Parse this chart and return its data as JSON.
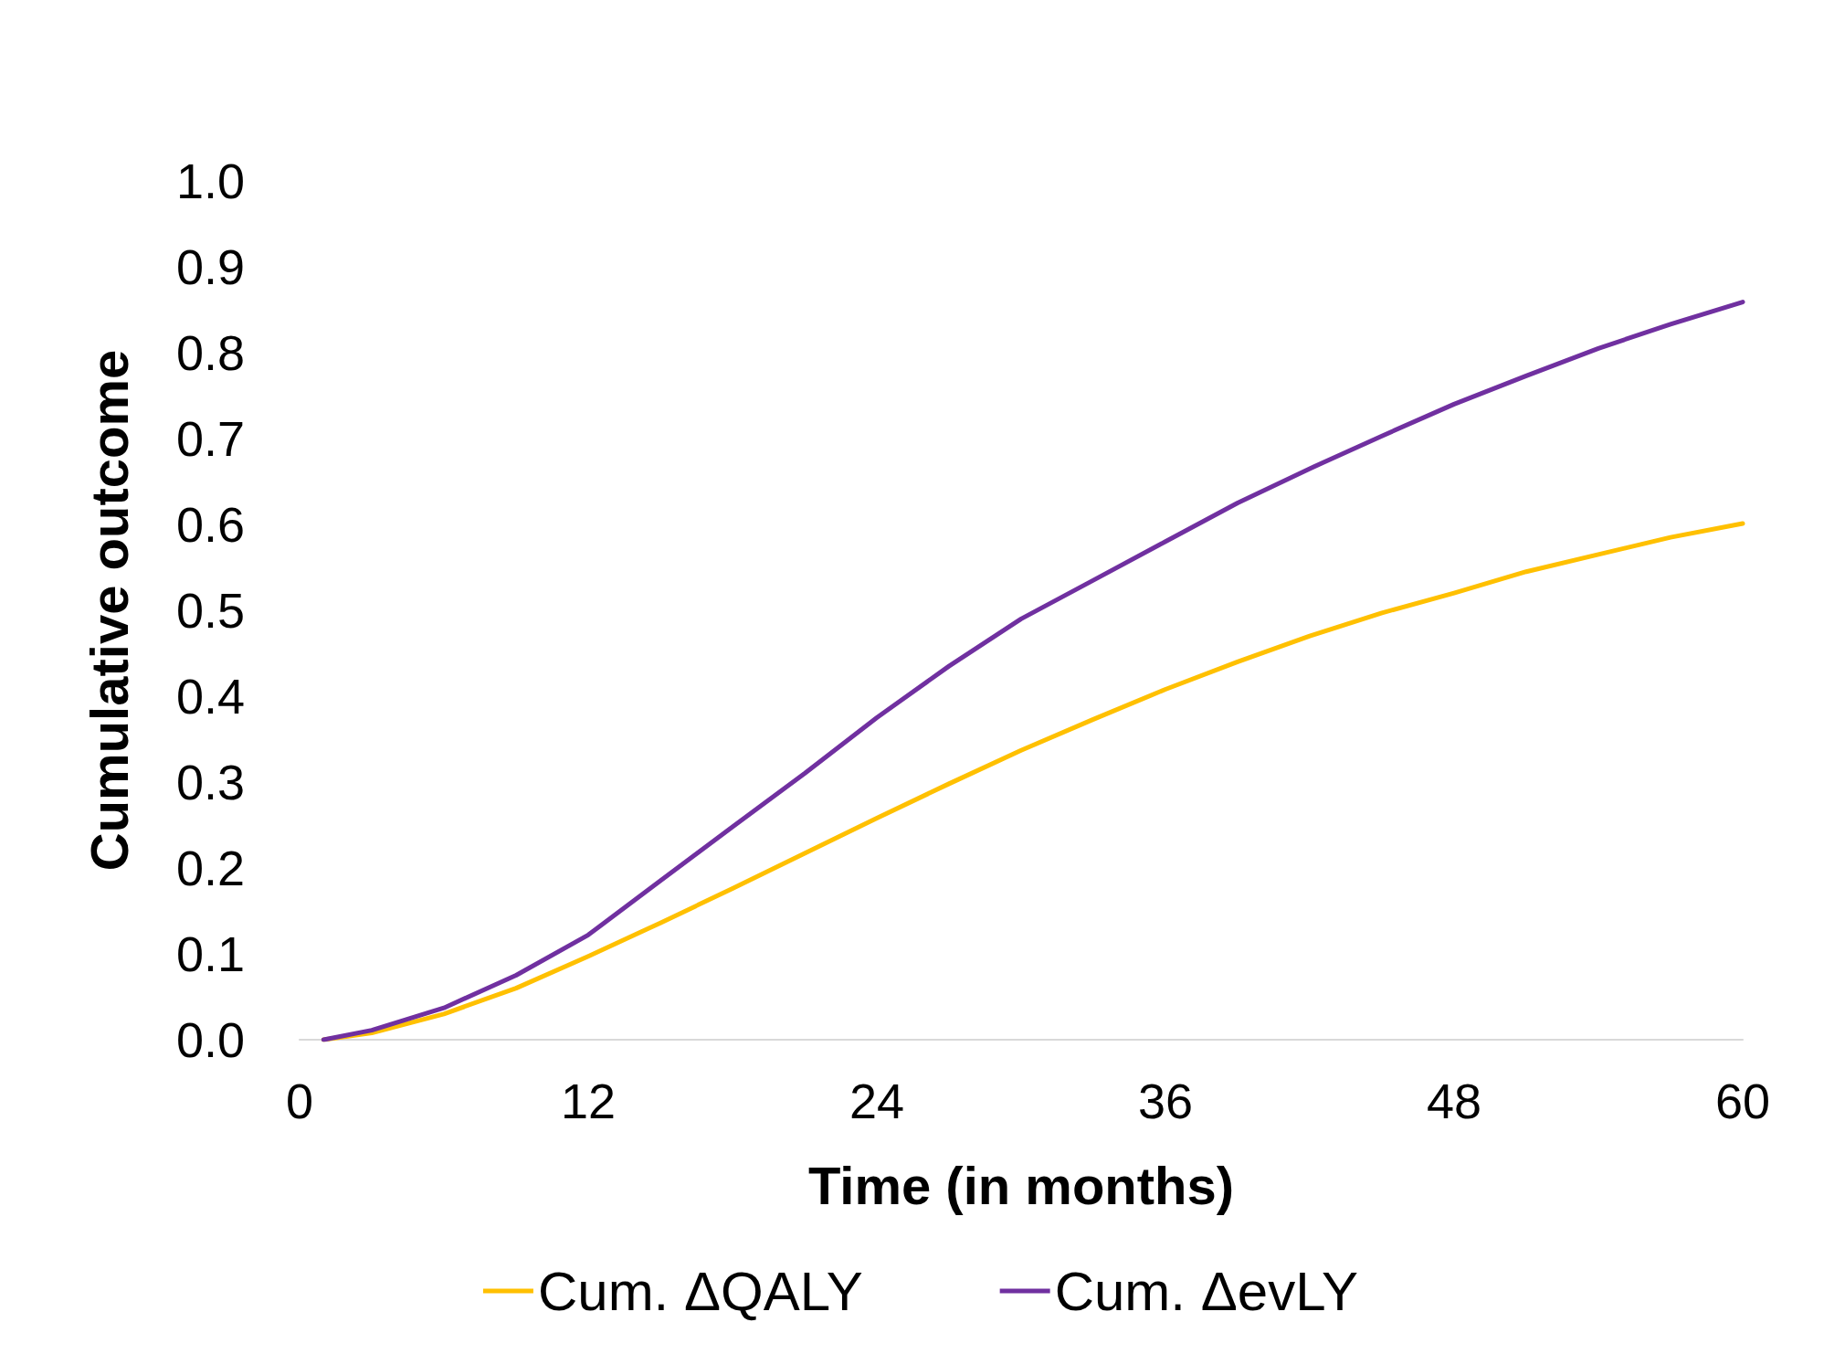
{
  "chart_data": {
    "type": "line",
    "xlabel": "Time (in months)",
    "ylabel": "Cumulative outcome",
    "xlim": [
      0,
      60
    ],
    "xticks": [
      0,
      12,
      24,
      36,
      48,
      60
    ],
    "ylim": [
      0,
      1
    ],
    "yticks": [
      {
        "value": 0,
        "label": "0.0"
      },
      {
        "value": 0.1,
        "label": "0.1"
      },
      {
        "value": 0.2,
        "label": "0.2"
      },
      {
        "value": 0.3,
        "label": "0.3"
      },
      {
        "value": 0.4,
        "label": "0.4"
      },
      {
        "value": 0.5,
        "label": "0.5"
      },
      {
        "value": 0.6,
        "label": "0.6"
      },
      {
        "value": 0.7,
        "label": "0.7"
      },
      {
        "value": 0.8,
        "label": "0.8"
      },
      {
        "value": 0.9,
        "label": "0.9"
      },
      {
        "value": 1,
        "label": "1.0"
      }
    ],
    "x": [
      1,
      3,
      6,
      9,
      12,
      15,
      18,
      21,
      24,
      27,
      30,
      33,
      36,
      39,
      42,
      45,
      48,
      51,
      54,
      57,
      60
    ],
    "series": [
      {
        "name": "Cum. ΔQALY",
        "color": "#ffc000",
        "values": [
          0,
          0.008,
          0.03,
          0.06,
          0.097,
          0.136,
          0.176,
          0.217,
          0.258,
          0.298,
          0.337,
          0.373,
          0.408,
          0.44,
          0.47,
          0.497,
          0.52,
          0.545,
          0.565,
          0.585,
          0.601
        ]
      },
      {
        "name": "Cum. ΔevLY",
        "color": "#7030a0",
        "values": [
          0,
          0.011,
          0.037,
          0.075,
          0.122,
          0.185,
          0.248,
          0.31,
          0.375,
          0.435,
          0.49,
          0.535,
          0.58,
          0.625,
          0.665,
          0.703,
          0.74,
          0.773,
          0.805,
          0.833,
          0.859
        ]
      }
    ],
    "grid": false,
    "legend": "bottom",
    "marker": "none",
    "line_style": "solid"
  }
}
